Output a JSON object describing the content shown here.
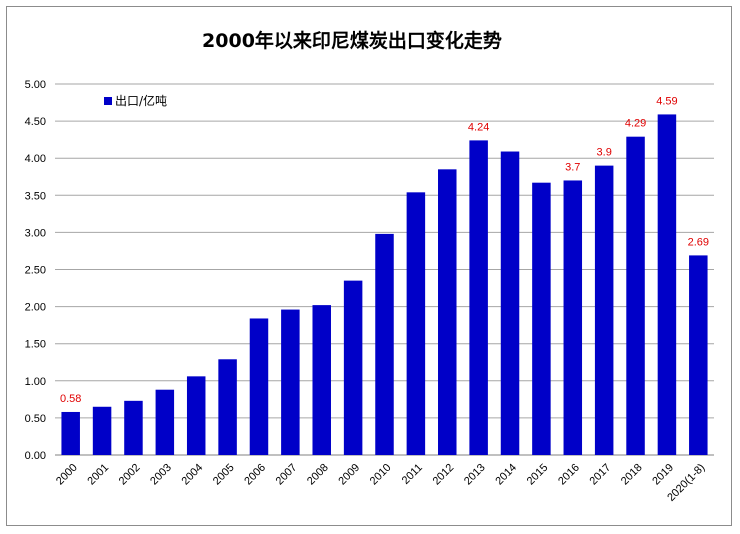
{
  "chart_data": {
    "type": "bar",
    "title": "2000年以来印尼煤炭出口变化走势",
    "legend": {
      "label": "出口/亿吨",
      "placement": "top-left"
    },
    "colors": {
      "bar": "#0000c8",
      "grid": "#a6a6a6",
      "label": "#e00000"
    },
    "grid": true,
    "ylim": [
      0,
      5
    ],
    "yticks": [
      "0.00",
      "0.50",
      "1.00",
      "1.50",
      "2.00",
      "2.50",
      "3.00",
      "3.50",
      "4.00",
      "4.50",
      "5.00"
    ],
    "categories": [
      "2000",
      "2001",
      "2002",
      "2003",
      "2004",
      "2005",
      "2006",
      "2007",
      "2008",
      "2009",
      "2010",
      "2011",
      "2012",
      "2013",
      "2014",
      "2015",
      "2016",
      "2017",
      "2018",
      "2019",
      "2020(1-8)"
    ],
    "values": [
      0.58,
      0.65,
      0.73,
      0.88,
      1.06,
      1.29,
      1.84,
      1.96,
      2.02,
      2.35,
      2.98,
      3.54,
      3.85,
      4.24,
      4.09,
      3.67,
      3.7,
      3.9,
      4.29,
      4.59,
      2.69
    ],
    "data_labels": [
      "0.58",
      "",
      "",
      "",
      "",
      "",
      "",
      "",
      "",
      "",
      "",
      "",
      "",
      "4.24",
      "",
      "",
      "3.7",
      "3.9",
      "4.29",
      "4.59",
      "2.69"
    ]
  }
}
